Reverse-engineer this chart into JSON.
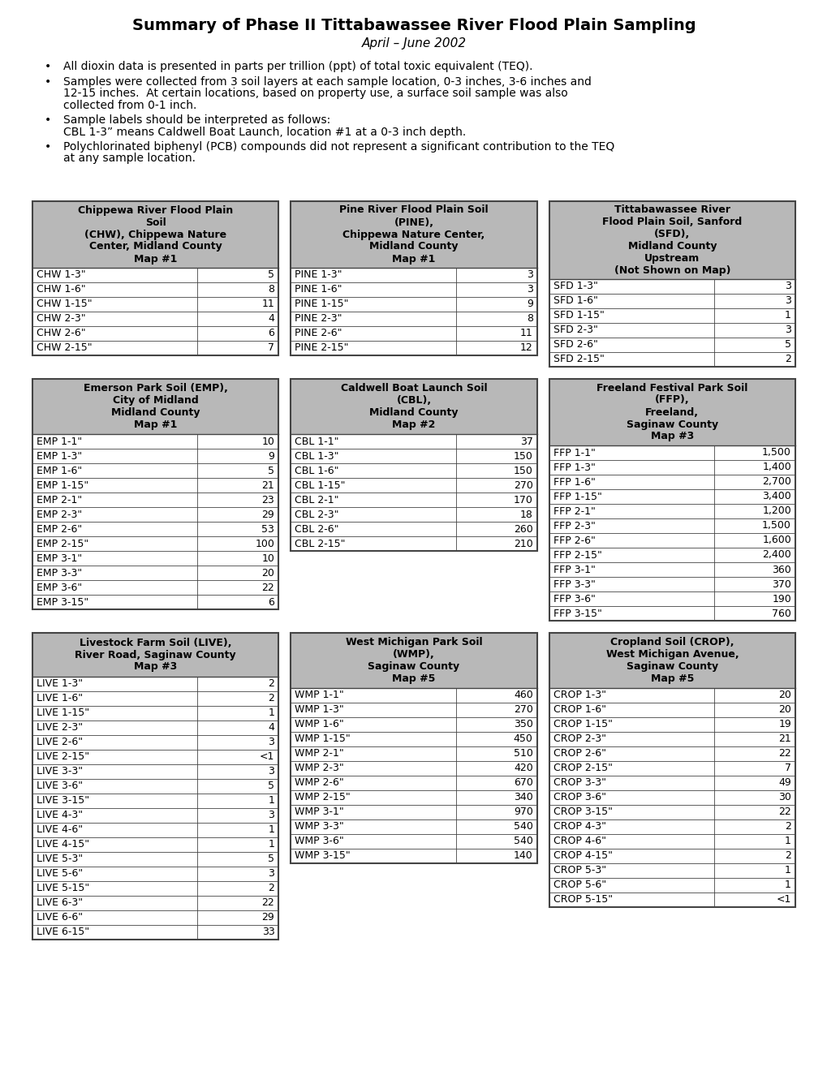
{
  "title": "Summary of Phase II Tittabawassee River Flood Plain Sampling",
  "subtitle": "April – June 2002",
  "bullet_texts": [
    "All dioxin data is presented in parts per trillion (ppt) of total toxic equivalent (TEQ).",
    "Samples were collected from 3 soil layers at each sample location, 0-3 inches, 3-6 inches and\n12-15 inches.  At certain locations, based on property use, a surface soil sample was also\ncollected from 0-1 inch.",
    "Sample labels should be interpreted as follows:\nCBL 1-3” means Caldwell Boat Launch, location #1 at a 0-3 inch depth.",
    "Polychlorinated biphenyl (PCB) compounds did not represent a significant contribution to the TEQ\nat any sample location."
  ],
  "tables": [
    {
      "header": "Chippewa River Flood Plain\nSoil\n(CHW), Chippewa Nature\nCenter, Midland County\nMap #1",
      "rows": [
        [
          "CHW 1-3\"",
          "5"
        ],
        [
          "CHW 1-6\"",
          "8"
        ],
        [
          "CHW 1-15\"",
          "11"
        ],
        [
          "CHW 2-3\"",
          "4"
        ],
        [
          "CHW 2-6\"",
          "6"
        ],
        [
          "CHW 2-15\"",
          "7"
        ]
      ]
    },
    {
      "header": "Pine River Flood Plain Soil\n(PINE),\nChippewa Nature Center,\nMidland County\nMap #1",
      "rows": [
        [
          "PINE 1-3\"",
          "3"
        ],
        [
          "PINE 1-6\"",
          "3"
        ],
        [
          "PINE 1-15\"",
          "9"
        ],
        [
          "PINE 2-3\"",
          "8"
        ],
        [
          "PINE 2-6\"",
          "11"
        ],
        [
          "PINE 2-15\"",
          "12"
        ]
      ]
    },
    {
      "header": "Tittabawassee River\nFlood Plain Soil, Sanford\n(SFD),\nMidland County\nUpstream\n(Not Shown on Map)",
      "rows": [
        [
          "SFD 1-3\"",
          "3"
        ],
        [
          "SFD 1-6\"",
          "3"
        ],
        [
          "SFD 1-15\"",
          "1"
        ],
        [
          "SFD 2-3\"",
          "3"
        ],
        [
          "SFD 2-6\"",
          "5"
        ],
        [
          "SFD 2-15\"",
          "2"
        ]
      ]
    },
    {
      "header": "Emerson Park Soil (EMP),\nCity of Midland\nMidland County\nMap #1",
      "rows": [
        [
          "EMP 1-1\"",
          "10"
        ],
        [
          "EMP 1-3\"",
          "9"
        ],
        [
          "EMP 1-6\"",
          "5"
        ],
        [
          "EMP 1-15\"",
          "21"
        ],
        [
          "EMP 2-1\"",
          "23"
        ],
        [
          "EMP 2-3\"",
          "29"
        ],
        [
          "EMP 2-6\"",
          "53"
        ],
        [
          "EMP 2-15\"",
          "100"
        ],
        [
          "EMP 3-1\"",
          "10"
        ],
        [
          "EMP 3-3\"",
          "20"
        ],
        [
          "EMP 3-6\"",
          "22"
        ],
        [
          "EMP 3-15\"",
          "6"
        ]
      ]
    },
    {
      "header": "Caldwell Boat Launch Soil\n(CBL),\nMidland County\nMap #2",
      "rows": [
        [
          "CBL 1-1\"",
          "37"
        ],
        [
          "CBL 1-3\"",
          "150"
        ],
        [
          "CBL 1-6\"",
          "150"
        ],
        [
          "CBL 1-15\"",
          "270"
        ],
        [
          "CBL 2-1\"",
          "170"
        ],
        [
          "CBL 2-3\"",
          "18"
        ],
        [
          "CBL 2-6\"",
          "260"
        ],
        [
          "CBL 2-15\"",
          "210"
        ]
      ]
    },
    {
      "header": "Freeland Festival Park Soil\n(FFP),\nFreeland,\nSaginaw County\nMap #3",
      "rows": [
        [
          "FFP 1-1\"",
          "1,500"
        ],
        [
          "FFP 1-3\"",
          "1,400"
        ],
        [
          "FFP 1-6\"",
          "2,700"
        ],
        [
          "FFP 1-15\"",
          "3,400"
        ],
        [
          "FFP 2-1\"",
          "1,200"
        ],
        [
          "FFP 2-3\"",
          "1,500"
        ],
        [
          "FFP 2-6\"",
          "1,600"
        ],
        [
          "FFP 2-15\"",
          "2,400"
        ],
        [
          "FFP 3-1\"",
          "360"
        ],
        [
          "FFP 3-3\"",
          "370"
        ],
        [
          "FFP 3-6\"",
          "190"
        ],
        [
          "FFP 3-15\"",
          "760"
        ]
      ]
    },
    {
      "header": "Livestock Farm Soil (LIVE),\nRiver Road, Saginaw County\nMap #3",
      "rows": [
        [
          "LIVE 1-3\"",
          "2"
        ],
        [
          "LIVE 1-6\"",
          "2"
        ],
        [
          "LIVE 1-15\"",
          "1"
        ],
        [
          "LIVE 2-3\"",
          "4"
        ],
        [
          "LIVE 2-6\"",
          "3"
        ],
        [
          "LIVE 2-15\"",
          "<1"
        ],
        [
          "LIVE 3-3\"",
          "3"
        ],
        [
          "LIVE 3-6\"",
          "5"
        ],
        [
          "LIVE 3-15\"",
          "1"
        ],
        [
          "LIVE 4-3\"",
          "3"
        ],
        [
          "LIVE 4-6\"",
          "1"
        ],
        [
          "LIVE 4-15\"",
          "1"
        ],
        [
          "LIVE 5-3\"",
          "5"
        ],
        [
          "LIVE 5-6\"",
          "3"
        ],
        [
          "LIVE 5-15\"",
          "2"
        ],
        [
          "LIVE 6-3\"",
          "22"
        ],
        [
          "LIVE 6-6\"",
          "29"
        ],
        [
          "LIVE 6-15\"",
          "33"
        ]
      ]
    },
    {
      "header": "West Michigan Park Soil\n(WMP),\nSaginaw County\nMap #5",
      "rows": [
        [
          "WMP 1-1\"",
          "460"
        ],
        [
          "WMP 1-3\"",
          "270"
        ],
        [
          "WMP 1-6\"",
          "350"
        ],
        [
          "WMP 1-15\"",
          "450"
        ],
        [
          "WMP 2-1\"",
          "510"
        ],
        [
          "WMP 2-3\"",
          "420"
        ],
        [
          "WMP 2-6\"",
          "670"
        ],
        [
          "WMP 2-15\"",
          "340"
        ],
        [
          "WMP 3-1\"",
          "970"
        ],
        [
          "WMP 3-3\"",
          "540"
        ],
        [
          "WMP 3-6\"",
          "540"
        ],
        [
          "WMP 3-15\"",
          "140"
        ]
      ]
    },
    {
      "header": "Cropland Soil (CROP),\nWest Michigan Avenue,\nSaginaw County\nMap #5",
      "rows": [
        [
          "CROP 1-3\"",
          "20"
        ],
        [
          "CROP 1-6\"",
          "20"
        ],
        [
          "CROP 1-15\"",
          "19"
        ],
        [
          "CROP 2-3\"",
          "21"
        ],
        [
          "CROP 2-6\"",
          "22"
        ],
        [
          "CROP 2-15\"",
          "7"
        ],
        [
          "CROP 3-3\"",
          "49"
        ],
        [
          "CROP 3-6\"",
          "30"
        ],
        [
          "CROP 3-15\"",
          "22"
        ],
        [
          "CROP 4-3\"",
          "2"
        ],
        [
          "CROP 4-6\"",
          "1"
        ],
        [
          "CROP 4-15\"",
          "2"
        ],
        [
          "CROP 5-3\"",
          "1"
        ],
        [
          "CROP 5-6\"",
          "1"
        ],
        [
          "CROP 5-15\"",
          "<1"
        ]
      ]
    }
  ],
  "header_bg": "#b8b8b8",
  "header_border": "#444444",
  "row_bg": "#ffffff",
  "row_border": "#444444",
  "title_fontsize": 14,
  "subtitle_fontsize": 11,
  "bullet_fontsize": 10,
  "header_fontsize": 9,
  "row_fontsize": 9,
  "fig_w": 10.2,
  "fig_h": 13.2,
  "dpi": 100
}
